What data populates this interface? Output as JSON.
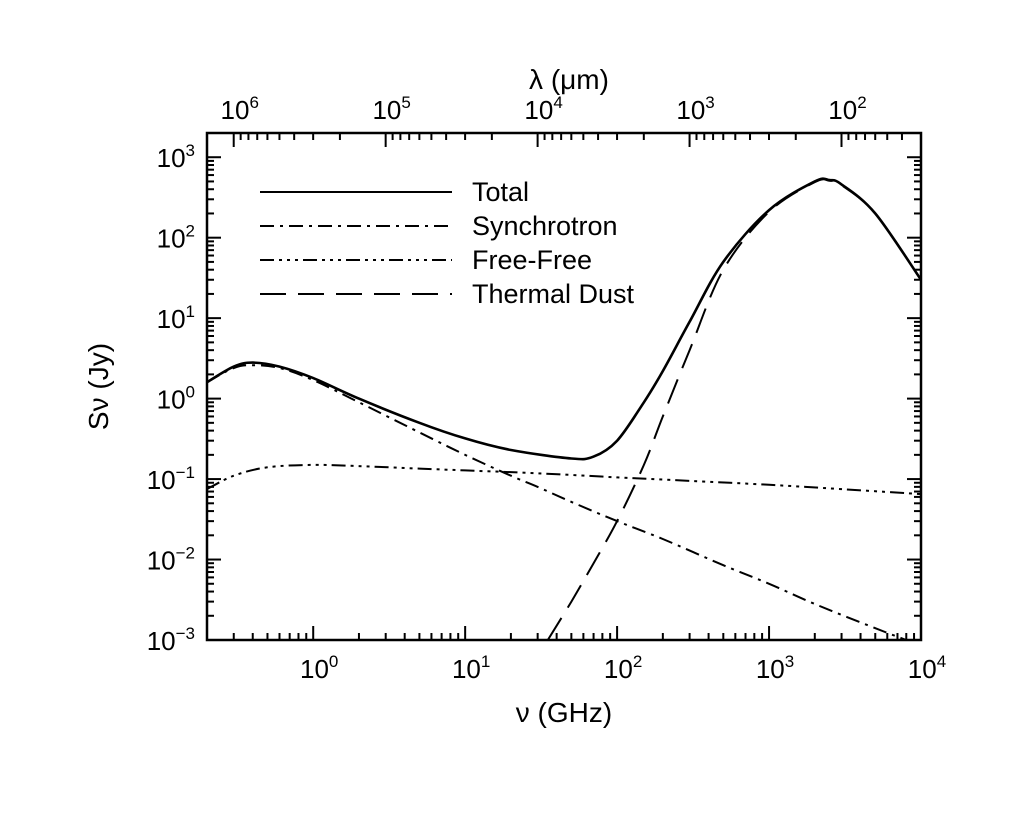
{
  "chart_data": {
    "type": "line",
    "x_scale": "log",
    "y_scale": "log",
    "xlabel": "ν (GHz)",
    "ylabel": "Sν (Jy)",
    "top_axis_label": "λ (μm)",
    "xlim": [
      0.2,
      10000
    ],
    "ylim": [
      0.001,
      2000
    ],
    "x_ticks": [
      {
        "value": 1,
        "mantissa": "10",
        "exp": "0"
      },
      {
        "value": 10,
        "mantissa": "10",
        "exp": "1"
      },
      {
        "value": 100,
        "mantissa": "10",
        "exp": "2"
      },
      {
        "value": 1000,
        "mantissa": "10",
        "exp": "3"
      },
      {
        "value": 10000,
        "mantissa": "10",
        "exp": "4"
      }
    ],
    "y_ticks": [
      {
        "value": 1000,
        "mantissa": "10",
        "exp": "3"
      },
      {
        "value": 100,
        "mantissa": "10",
        "exp": "2"
      },
      {
        "value": 10,
        "mantissa": "10",
        "exp": "1"
      },
      {
        "value": 1,
        "mantissa": "10",
        "exp": "0"
      },
      {
        "value": 0.1,
        "mantissa": "10",
        "exp": "−1"
      },
      {
        "value": 0.01,
        "mantissa": "10",
        "exp": "−2"
      },
      {
        "value": 0.001,
        "mantissa": "10",
        "exp": "−3"
      }
    ],
    "top_ticks": [
      {
        "wavelength_um": 1000000,
        "mantissa": "10",
        "exp": "6"
      },
      {
        "wavelength_um": 100000,
        "mantissa": "10",
        "exp": "5"
      },
      {
        "wavelength_um": 10000,
        "mantissa": "10",
        "exp": "4"
      },
      {
        "wavelength_um": 1000,
        "mantissa": "10",
        "exp": "3"
      },
      {
        "wavelength_um": 100,
        "mantissa": "10",
        "exp": "2"
      }
    ],
    "legend_position": "upper-left",
    "series": [
      {
        "name": "Total",
        "dash": "solid",
        "x": [
          0.2,
          0.3,
          0.4,
          0.6,
          1,
          2,
          5,
          10,
          20,
          50,
          70,
          100,
          150,
          200,
          300,
          500,
          1000,
          2000,
          2500,
          3000,
          5000,
          10000
        ],
        "y": [
          1.6,
          2.5,
          2.8,
          2.5,
          1.8,
          1.0,
          0.5,
          0.32,
          0.23,
          0.18,
          0.19,
          0.3,
          0.9,
          2.2,
          9,
          50,
          220,
          500,
          520,
          460,
          200,
          30
        ]
      },
      {
        "name": "Synchrotron",
        "dash": "dashdot",
        "x": [
          0.2,
          0.3,
          0.4,
          0.6,
          1,
          2,
          5,
          10,
          20,
          30,
          50,
          100,
          200,
          500,
          1000,
          2000,
          5000,
          8000
        ],
        "y": [
          1.6,
          2.4,
          2.6,
          2.4,
          1.7,
          0.9,
          0.38,
          0.2,
          0.11,
          0.08,
          0.052,
          0.03,
          0.018,
          0.0085,
          0.005,
          0.0028,
          0.0014,
          0.001
        ]
      },
      {
        "name": "Free-Free",
        "dash": "dashdotdotdot",
        "x": [
          0.2,
          0.3,
          0.5,
          1,
          2,
          5,
          10,
          30,
          100,
          300,
          1000,
          3000,
          10000
        ],
        "y": [
          0.075,
          0.11,
          0.14,
          0.15,
          0.145,
          0.135,
          0.128,
          0.118,
          0.105,
          0.095,
          0.085,
          0.075,
          0.065
        ]
      },
      {
        "name": "Thermal Dust",
        "dash": "longdash",
        "x": [
          35,
          50,
          70,
          100,
          150,
          200,
          300,
          500,
          1000,
          2000,
          2500,
          3000,
          5000,
          10000
        ],
        "y": [
          0.001,
          0.003,
          0.009,
          0.03,
          0.15,
          0.6,
          4,
          40,
          210,
          490,
          510,
          450,
          200,
          30
        ]
      }
    ]
  }
}
